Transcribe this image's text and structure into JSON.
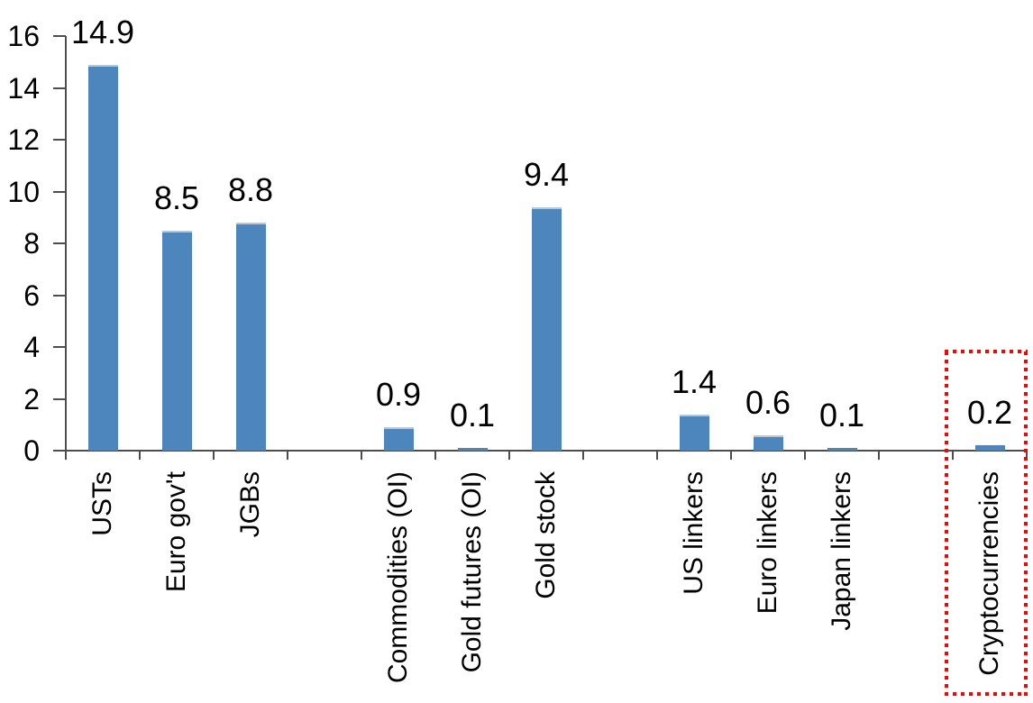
{
  "chart_data": {
    "type": "bar",
    "title": "",
    "xlabel": "",
    "ylabel": "",
    "categories": [
      "USTs",
      "Euro gov't",
      "JGBs",
      "",
      "Commodities (OI)",
      "Gold futures (OI)",
      "Gold stock",
      "",
      "US linkers",
      "Euro linkers",
      "Japan linkers",
      "",
      "Cryptocurrencies"
    ],
    "values": [
      14.9,
      8.5,
      8.8,
      null,
      0.9,
      0.1,
      9.4,
      null,
      1.4,
      0.6,
      0.1,
      null,
      0.2
    ],
    "data_labels": [
      "14.9",
      "8.5",
      "8.8",
      "",
      "0.9",
      "0.1",
      "9.4",
      "",
      "1.4",
      "0.6",
      "0.1",
      "",
      "0.2"
    ],
    "ylim": [
      0,
      16
    ],
    "yticks": [
      0,
      2,
      4,
      6,
      8,
      10,
      12,
      14,
      16
    ],
    "grid": false,
    "legend": false,
    "bar_color": "#4D86BC",
    "bar_top_edge_color": "#AFC9E1",
    "axis_color": "#4D4D4D",
    "text_color": "#000000",
    "highlight_box": {
      "around_category": "Cryptocurrencies",
      "color": "#FF0000",
      "style": "square-dotted"
    }
  }
}
